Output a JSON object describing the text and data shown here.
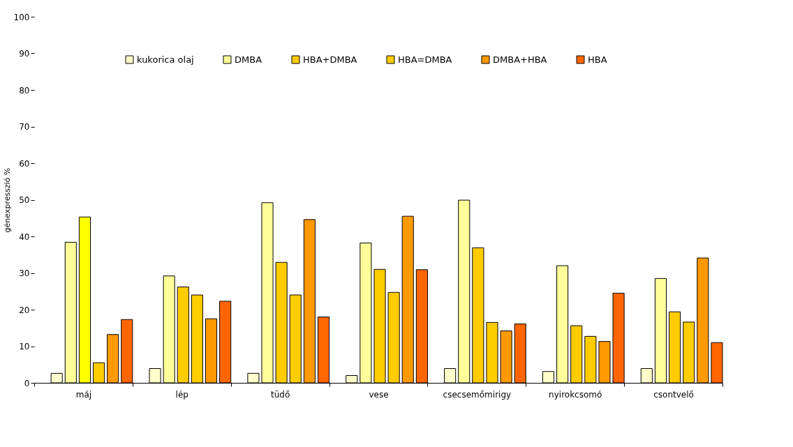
{
  "chart_data": {
    "type": "bar",
    "ylabel": "génexpresszió %",
    "categories": [
      "máj",
      "lép",
      "tüdő",
      "vese",
      "csecsemőmirigy",
      "nyirokcsomó",
      "csontvelő"
    ],
    "series": [
      {
        "name": "kukorica olaj",
        "color": "#ffffcc",
        "values": [
          2.6,
          3.9,
          2.6,
          2,
          3.9,
          3.1,
          3.9
        ]
      },
      {
        "name": "DMBA",
        "color": "#ffff99",
        "values": [
          38.4,
          29.2,
          49.2,
          38.2,
          49.9,
          32,
          28.5
        ]
      },
      {
        "name": "HBA+DMBA",
        "color": "#ffcc00",
        "colors": [
          "#ffff00",
          "#ffcc00",
          "#ffcc00",
          "#ffcc00",
          "#ffcc00",
          "#ffcc00",
          "#ffcc00"
        ],
        "values": [
          45.3,
          26.2,
          32.9,
          31,
          36.9,
          15.6,
          19.4
        ]
      },
      {
        "name": "HBA=DMBA",
        "color": "#ffcc00",
        "values": [
          5.5,
          24,
          24,
          24.7,
          16.5,
          12.7,
          16.6
        ]
      },
      {
        "name": "DMBA+HBA",
        "color": "#ff9900",
        "values": [
          13.2,
          17.5,
          44.6,
          45.5,
          14.2,
          11.3,
          34.1
        ]
      },
      {
        "name": "HBA",
        "color": "#ff6600",
        "values": [
          17.3,
          22.3,
          18,
          30.9,
          16.1,
          24.5,
          11
        ]
      }
    ],
    "ylim": [
      0,
      100
    ],
    "yticks": [
      0,
      10,
      20,
      30,
      40,
      50,
      60,
      70,
      80,
      90,
      100
    ],
    "grid": false,
    "legend": "top"
  }
}
